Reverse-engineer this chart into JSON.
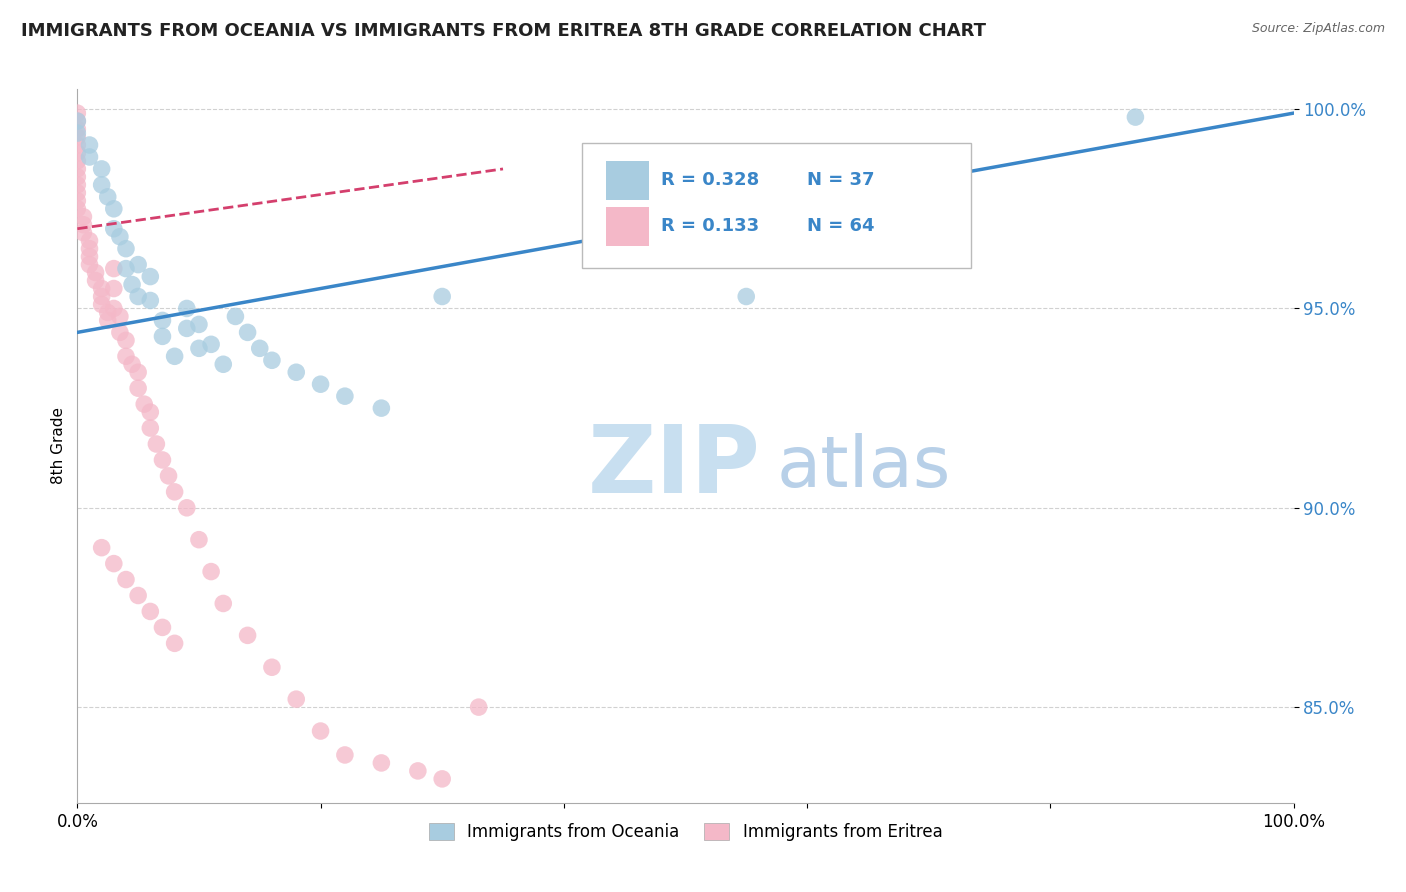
{
  "title": "IMMIGRANTS FROM OCEANIA VS IMMIGRANTS FROM ERITREA 8TH GRADE CORRELATION CHART",
  "source_text": "Source: ZipAtlas.com",
  "ylabel": "8th Grade",
  "xlim": [
    0.0,
    1.0
  ],
  "ylim": [
    0.826,
    1.005
  ],
  "yticks": [
    0.85,
    0.9,
    0.95,
    1.0
  ],
  "ytick_labels": [
    "85.0%",
    "90.0%",
    "95.0%",
    "100.0%"
  ],
  "xticks": [
    0.0,
    0.2,
    0.4,
    0.6,
    0.8,
    1.0
  ],
  "xtick_labels": [
    "0.0%",
    "",
    "",
    "",
    "",
    "100.0%"
  ],
  "legend_label_blue": "Immigrants from Oceania",
  "legend_label_pink": "Immigrants from Eritrea",
  "blue_color": "#a8cce0",
  "pink_color": "#f4b8c8",
  "blue_line_color": "#3a86c8",
  "pink_line_color": "#d43f6d",
  "watermark_zip": "ZIP",
  "watermark_atlas": "atlas",
  "watermark_color_zip": "#c8dff0",
  "watermark_color_atlas": "#b8d0e8",
  "background_color": "#ffffff",
  "grid_color": "#cccccc",
  "blue_scatter_x": [
    0.0,
    0.0,
    0.01,
    0.01,
    0.02,
    0.02,
    0.025,
    0.03,
    0.03,
    0.035,
    0.04,
    0.04,
    0.045,
    0.05,
    0.05,
    0.06,
    0.06,
    0.07,
    0.07,
    0.08,
    0.09,
    0.09,
    0.1,
    0.1,
    0.11,
    0.12,
    0.13,
    0.14,
    0.15,
    0.16,
    0.18,
    0.2,
    0.22,
    0.25,
    0.3,
    0.55,
    0.87
  ],
  "blue_scatter_y": [
    0.997,
    0.994,
    0.991,
    0.988,
    0.985,
    0.981,
    0.978,
    0.975,
    0.97,
    0.968,
    0.965,
    0.96,
    0.956,
    0.953,
    0.961,
    0.958,
    0.952,
    0.947,
    0.943,
    0.938,
    0.95,
    0.945,
    0.94,
    0.946,
    0.941,
    0.936,
    0.948,
    0.944,
    0.94,
    0.937,
    0.934,
    0.931,
    0.928,
    0.925,
    0.953,
    0.953,
    0.998
  ],
  "pink_scatter_x": [
    0.0,
    0.0,
    0.0,
    0.0,
    0.0,
    0.0,
    0.0,
    0.0,
    0.0,
    0.0,
    0.0,
    0.0,
    0.0,
    0.005,
    0.005,
    0.005,
    0.01,
    0.01,
    0.01,
    0.01,
    0.015,
    0.015,
    0.02,
    0.02,
    0.02,
    0.025,
    0.025,
    0.03,
    0.03,
    0.03,
    0.035,
    0.035,
    0.04,
    0.04,
    0.045,
    0.05,
    0.05,
    0.055,
    0.06,
    0.06,
    0.065,
    0.07,
    0.075,
    0.08,
    0.09,
    0.1,
    0.11,
    0.12,
    0.14,
    0.16,
    0.18,
    0.2,
    0.22,
    0.25,
    0.28,
    0.3,
    0.33,
    0.02,
    0.03,
    0.04,
    0.05,
    0.06,
    0.07,
    0.08
  ],
  "pink_scatter_y": [
    0.999,
    0.997,
    0.995,
    0.993,
    0.991,
    0.989,
    0.987,
    0.985,
    0.983,
    0.981,
    0.979,
    0.977,
    0.975,
    0.973,
    0.971,
    0.969,
    0.967,
    0.965,
    0.963,
    0.961,
    0.959,
    0.957,
    0.955,
    0.953,
    0.951,
    0.949,
    0.947,
    0.96,
    0.955,
    0.95,
    0.948,
    0.944,
    0.942,
    0.938,
    0.936,
    0.934,
    0.93,
    0.926,
    0.924,
    0.92,
    0.916,
    0.912,
    0.908,
    0.904,
    0.9,
    0.892,
    0.884,
    0.876,
    0.868,
    0.86,
    0.852,
    0.844,
    0.838,
    0.836,
    0.834,
    0.832,
    0.85,
    0.89,
    0.886,
    0.882,
    0.878,
    0.874,
    0.87,
    0.866
  ],
  "blue_trendline_x": [
    0.0,
    1.0
  ],
  "blue_trendline_y": [
    0.944,
    0.999
  ],
  "pink_trendline_x": [
    0.0,
    0.35
  ],
  "pink_trendline_y": [
    0.97,
    0.985
  ]
}
